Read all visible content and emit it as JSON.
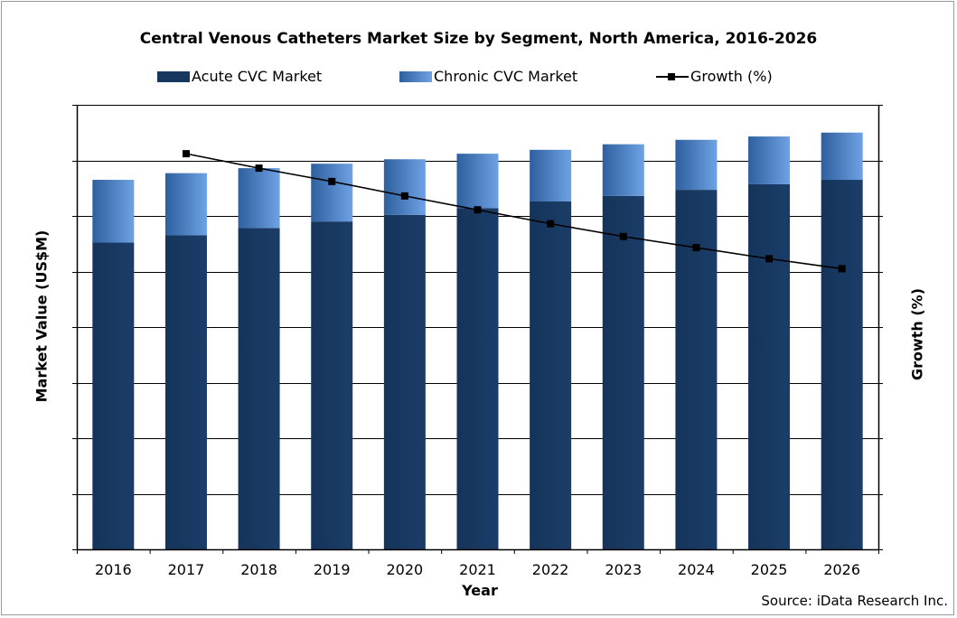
{
  "chart_data": {
    "type": "bar",
    "stacked": true,
    "title": "Central Venous Catheters Market Size by Segment, North America, 2016-2026",
    "xlabel": "Year",
    "ylabel": "Market Value (US$M)",
    "y2label": "Growth (%)",
    "categories": [
      "2016",
      "2017",
      "2018",
      "2019",
      "2020",
      "2021",
      "2022",
      "2023",
      "2024",
      "2025",
      "2026"
    ],
    "ylim": [
      0,
      8
    ],
    "y2lim": [
      0,
      8
    ],
    "y_ticks_labeled": false,
    "gridlines": "horizontal",
    "legend_position": "top",
    "series": [
      {
        "name": "Acute CVC Market",
        "type": "bar",
        "color": "#17375e",
        "values": [
          5.52,
          5.65,
          5.78,
          5.9,
          6.02,
          6.14,
          6.26,
          6.36,
          6.47,
          6.57,
          6.65
        ]
      },
      {
        "name": "Chronic CVC Market",
        "type": "bar",
        "color": "#4f86d2",
        "values": [
          1.13,
          1.12,
          1.08,
          1.04,
          1.0,
          0.98,
          0.93,
          0.93,
          0.9,
          0.86,
          0.85
        ]
      },
      {
        "name": "Growth (%)",
        "type": "line",
        "color": "#000000",
        "axis": "secondary",
        "values": [
          null,
          7.12,
          6.86,
          6.62,
          6.36,
          6.11,
          5.86,
          5.63,
          5.43,
          5.23,
          5.05
        ]
      }
    ]
  },
  "source": "Source: iData Research Inc."
}
